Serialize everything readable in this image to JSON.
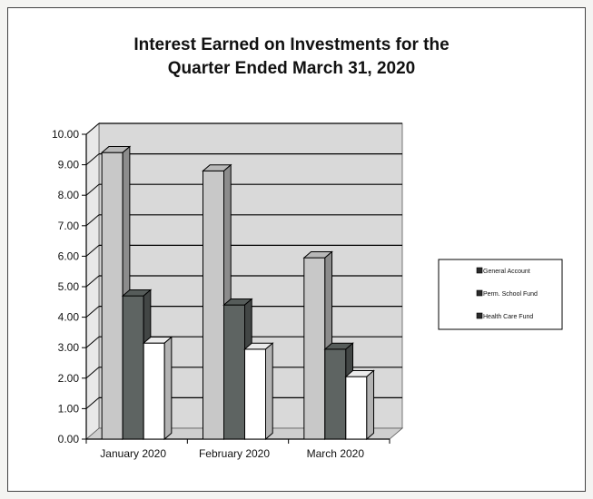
{
  "chart_data": {
    "type": "bar",
    "title_lines": [
      "Interest Earned on Investments for the",
      "Quarter Ended March 31, 2020"
    ],
    "categories": [
      "January 2020",
      "February 2020",
      "March 2020"
    ],
    "series": [
      {
        "name": "General Account",
        "values": [
          9.4,
          8.8,
          5.95
        ]
      },
      {
        "name": "Perm. School Fund",
        "values": [
          4.7,
          4.4,
          2.95
        ]
      },
      {
        "name": "Health Care Fund",
        "values": [
          3.15,
          2.95,
          2.05
        ]
      }
    ],
    "ylim": [
      0,
      10
    ],
    "yticks": [
      "0.00",
      "1.00",
      "2.00",
      "3.00",
      "4.00",
      "5.00",
      "6.00",
      "7.00",
      "8.00",
      "9.00",
      "10.00"
    ],
    "grid": true,
    "three_d": true,
    "legend_position": "right",
    "colors": {
      "series": [
        "#c8c8c8",
        "#5e6462",
        "#ffffff"
      ],
      "legend_swatch": "#2a2a2a",
      "back_wall": "#d9d9d9",
      "floor": "#cfcfcf",
      "grid": "#000000"
    }
  }
}
